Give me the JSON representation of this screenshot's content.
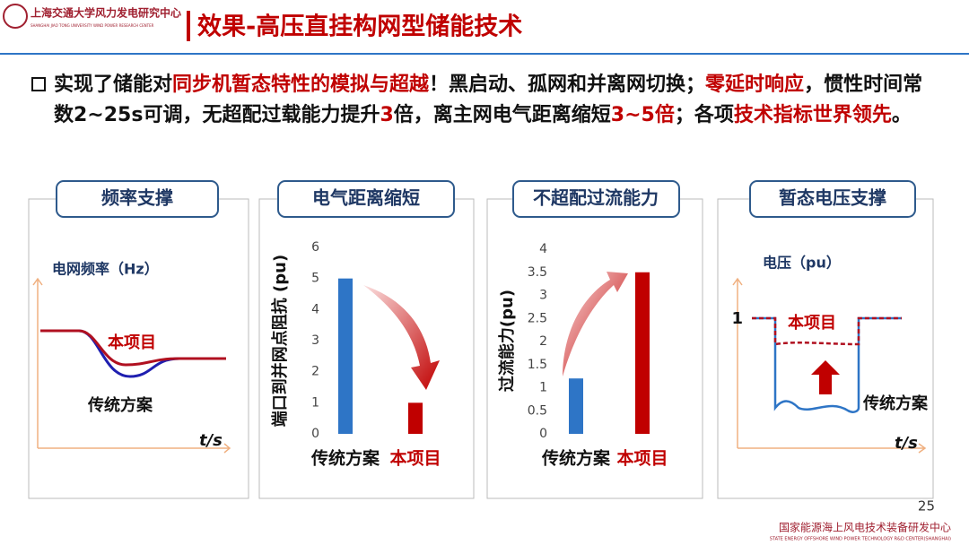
{
  "header": {
    "logo_text": "上海交通大学风力发电研究中心",
    "logo_subtext": "SHANGHAI JIAO TONG UNIVERSITY WIND POWER RESEARCH CENTER",
    "title": "效果-高压直挂构网型储能技术"
  },
  "bullet": {
    "segments": [
      {
        "text": "实现了储能对",
        "color": "#111111"
      },
      {
        "text": "同步机暂态特性的模拟与超越",
        "color": "#c00000"
      },
      {
        "text": "！黑启动、孤网和并离网切换；",
        "color": "#111111"
      },
      {
        "text": "零延时响应",
        "color": "#c00000"
      },
      {
        "text": "，惯性时间常数2~25s可调，无超配过载能力提升",
        "color": "#111111"
      },
      {
        "text": "3",
        "color": "#c00000"
      },
      {
        "text": "倍，离主网电气距离缩短",
        "color": "#111111"
      },
      {
        "text": "3~5倍",
        "color": "#c00000"
      },
      {
        "text": "；各项",
        "color": "#111111"
      },
      {
        "text": "技术指标世界领先",
        "color": "#c00000"
      },
      {
        "text": "。",
        "color": "#111111"
      }
    ]
  },
  "panels": [
    {
      "title": "频率支撑",
      "y_label": "电网频率（Hz）",
      "curve_a": "本项目",
      "curve_b": "传统方案",
      "x_label": "t/s"
    },
    {
      "title": "电气距离缩短"
    },
    {
      "title": "不超配过流能力"
    },
    {
      "title": "暂态电压支撑",
      "y_label": "电压（pu）",
      "level": "1",
      "curve_a": "本项目",
      "curve_b": "传统方案",
      "x_label": "t/s"
    }
  ],
  "chart_data": [
    {
      "type": "bar",
      "y_label": "端口到并网点阻抗 (pu)",
      "categories": [
        "传统方案",
        "本项目"
      ],
      "values": [
        5,
        1
      ],
      "colors": [
        "#2e75c6",
        "#c00000"
      ],
      "ylim": [
        0,
        6
      ],
      "yticks": [
        0,
        1,
        2,
        3,
        4,
        5,
        6
      ]
    },
    {
      "type": "bar",
      "y_label": "过流能力(pu)",
      "categories": [
        "传统方案",
        "本项目"
      ],
      "values": [
        1.2,
        3.5
      ],
      "colors": [
        "#2e75c6",
        "#c00000"
      ],
      "ylim": [
        0,
        4
      ],
      "yticks": [
        0,
        0.5,
        1,
        1.5,
        2,
        2.5,
        3,
        3.5,
        4
      ]
    }
  ],
  "footer": {
    "page": "25",
    "org": "国家能源海上风电技术装备研发中心",
    "org_en": "STATE ENERGY OFFSHORE WIND POWER TECHNOLOGY R&D CENTER(SHANGHAI)"
  }
}
